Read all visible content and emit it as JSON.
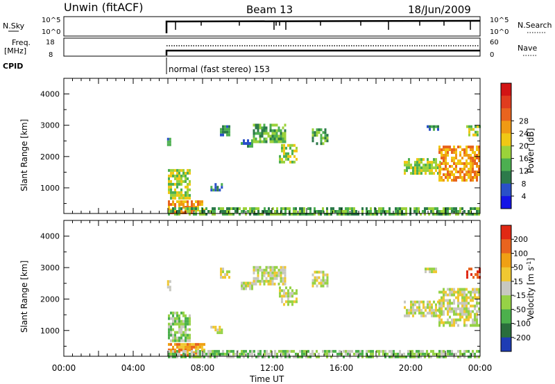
{
  "header": {
    "station": "Unwin (fitACF)",
    "beam": "Beam 13",
    "date": "18/Jun/2009"
  },
  "panels": {
    "nsky_label": "N.Sky",
    "nsky_ticks": [
      "10^5",
      "10^0"
    ],
    "nsearch_label": "N.Search",
    "nsearch_ticks": [
      "10^5",
      "10^0"
    ],
    "freq_label_1": "Freq.",
    "freq_label_2": "[MHz]",
    "freq_ticks": [
      "18",
      "8"
    ],
    "nave_label": "Nave",
    "nave_ticks": [
      "60",
      "0"
    ],
    "cpid_label": "CPID",
    "cpid_text": "normal (fast stereo) 153"
  },
  "chart_data": [
    {
      "type": "heatmap",
      "name": "power",
      "ylabel": "Slant Range [km]",
      "yticks": [
        "1000",
        "2000",
        "3000",
        "4000"
      ],
      "ylim": [
        180,
        4500
      ],
      "colorbar_label": "Power [dB]",
      "colorbar_ticks": [
        "4",
        "8",
        "12",
        "16",
        "20",
        "24",
        "28"
      ],
      "colorbar_colors": [
        "#1414e6",
        "#2a50c8",
        "#2c7a4a",
        "#4caf50",
        "#9bd23a",
        "#f0c814",
        "#f09a14",
        "#e8641e",
        "#e03c1e",
        "#d21414"
      ],
      "patches": [
        {
          "t": [
            5.95,
            6.15
          ],
          "r": [
            2250,
            2600
          ],
          "level": 2
        },
        {
          "t": [
            6.0,
            7.25
          ],
          "r": [
            650,
            1600
          ],
          "level": 4
        },
        {
          "t": [
            6.0,
            8.1
          ],
          "r": [
            180,
            600
          ],
          "level": 6
        },
        {
          "t": [
            8.45,
            9.1
          ],
          "r": [
            900,
            1150
          ],
          "level": 2
        },
        {
          "t": [
            9.0,
            9.6
          ],
          "r": [
            2650,
            3000
          ],
          "level": 2
        },
        {
          "t": [
            10.2,
            10.9
          ],
          "r": [
            2300,
            2550
          ],
          "level": 2
        },
        {
          "t": [
            10.9,
            12.8
          ],
          "r": [
            2450,
            3050
          ],
          "level": 3
        },
        {
          "t": [
            12.4,
            13.4
          ],
          "r": [
            1850,
            2400
          ],
          "level": 4
        },
        {
          "t": [
            14.3,
            15.2
          ],
          "r": [
            2400,
            2900
          ],
          "level": 3
        },
        {
          "t": [
            19.6,
            21.7
          ],
          "r": [
            1500,
            1950
          ],
          "level": 4
        },
        {
          "t": [
            21.6,
            24.0
          ],
          "r": [
            1200,
            2350
          ],
          "level": 6
        },
        {
          "t": [
            20.8,
            21.6
          ],
          "r": [
            2850,
            3000
          ],
          "level": 2
        },
        {
          "t": [
            23.2,
            24.0
          ],
          "r": [
            2650,
            3000
          ],
          "level": 4
        },
        {
          "t": [
            6.0,
            24.0
          ],
          "r": [
            180,
            380
          ],
          "level": 3
        }
      ]
    },
    {
      "type": "heatmap",
      "name": "velocity",
      "ylabel": "Slant Range [km]",
      "yticks": [
        "1000",
        "2000",
        "3000",
        "4000"
      ],
      "ylim": [
        180,
        4500
      ],
      "colorbar_label": "Velocity [m s^-1]",
      "colorbar_ticks": [
        "200",
        "100",
        "50",
        "15",
        "-15",
        "-50",
        "-100",
        "-200"
      ],
      "colorbar_colors": [
        "#1e3cb4",
        "#2a6e3c",
        "#4cb04c",
        "#96d246",
        "#c8c8c0",
        "#f0c832",
        "#f0a014",
        "#e8641e",
        "#e02814"
      ],
      "patches": [
        {
          "t": [
            5.95,
            6.15
          ],
          "r": [
            2250,
            2600
          ],
          "level": 4
        },
        {
          "t": [
            6.0,
            7.25
          ],
          "r": [
            650,
            1600
          ],
          "level": 3
        },
        {
          "t": [
            6.0,
            8.1
          ],
          "r": [
            180,
            600
          ],
          "level": 6
        },
        {
          "t": [
            8.45,
            9.1
          ],
          "r": [
            900,
            1150
          ],
          "level": 4
        },
        {
          "t": [
            9.0,
            9.6
          ],
          "r": [
            2650,
            3000
          ],
          "level": 4
        },
        {
          "t": [
            10.2,
            10.9
          ],
          "r": [
            2300,
            2550
          ],
          "level": 4
        },
        {
          "t": [
            10.9,
            12.8
          ],
          "r": [
            2450,
            3050
          ],
          "level": 4
        },
        {
          "t": [
            12.4,
            13.4
          ],
          "r": [
            1850,
            2400
          ],
          "level": 4
        },
        {
          "t": [
            14.3,
            15.2
          ],
          "r": [
            2400,
            2900
          ],
          "level": 4
        },
        {
          "t": [
            19.6,
            21.7
          ],
          "r": [
            1500,
            1950
          ],
          "level": 4
        },
        {
          "t": [
            21.6,
            24.0
          ],
          "r": [
            1200,
            2350
          ],
          "level": 4
        },
        {
          "t": [
            20.8,
            21.6
          ],
          "r": [
            2850,
            3000
          ],
          "level": 4
        },
        {
          "t": [
            23.2,
            24.0
          ],
          "r": [
            2650,
            3000
          ],
          "level": 8
        },
        {
          "t": [
            6.0,
            24.0
          ],
          "r": [
            180,
            380
          ],
          "level": 3
        }
      ]
    }
  ],
  "xaxis": {
    "label": "Time UT",
    "ticks": [
      "00:00",
      "04:00",
      "08:00",
      "12:00",
      "16:00",
      "20:00",
      "00:00"
    ],
    "range_hours": [
      0,
      24
    ]
  }
}
